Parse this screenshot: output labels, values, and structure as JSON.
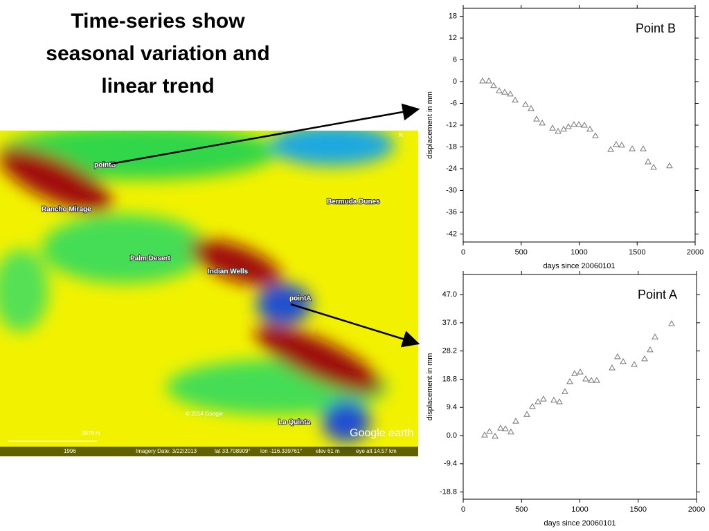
{
  "slide_title": "Time-series show seasonal variation and linear trend",
  "map": {
    "labels": [
      "pointB",
      "Rancho Mirage",
      "Bermuda Dunes",
      "Palm Desert",
      "Indian Wells",
      "pointA",
      "La Quinta",
      "© 2014 Google",
      "Google earth",
      "2079 m",
      "1996",
      "N"
    ],
    "status": [
      "Imagery Date: 3/22/2013",
      "lat  33.708909°",
      "lon -116.339761°",
      "elev   61 m",
      "eye alt  14.57 km"
    ]
  },
  "chart_data": [
    {
      "type": "scatter",
      "title": "Point B",
      "x_label": "days since 20060101",
      "y_label": "displacement in mm",
      "marker": "triangle",
      "color": "#777777",
      "xlim": [
        0,
        2000
      ],
      "xticks": [
        0,
        500,
        1000,
        1500,
        2000
      ],
      "ylim": [
        -44.2,
        20.2
      ],
      "yticks": [
        18,
        12,
        6,
        0,
        -6,
        -12,
        -18,
        -24,
        -30,
        -36,
        -42
      ],
      "x": [
        167,
        221,
        263,
        310,
        358,
        406,
        448,
        537,
        585,
        633,
        681,
        770,
        818,
        866,
        907,
        955,
        997,
        1045,
        1093,
        1140,
        1272,
        1319,
        1367,
        1457,
        1552,
        1594,
        1642,
        1779
      ],
      "values": [
        0.2,
        0.2,
        -1.1,
        -2.5,
        -2.9,
        -3.4,
        -5.1,
        -6.3,
        -7.4,
        -10.3,
        -11.4,
        -12.8,
        -13.7,
        -13.1,
        -12.4,
        -11.8,
        -11.8,
        -12,
        -13.1,
        -14.9,
        -18.7,
        -17.3,
        -17.5,
        -18.5,
        -18.5,
        -22.1,
        -23.6,
        -23.2
      ]
    },
    {
      "type": "scatter",
      "title": "Point A",
      "x_label": "days since 20060101",
      "y_label": "displacement in mm",
      "marker": "triangle",
      "color": "#777777",
      "xlim": [
        0,
        2000
      ],
      "xticks": [
        0,
        500,
        1000,
        1500,
        2000
      ],
      "ylim": [
        -21.2,
        53.7
      ],
      "yticks": [
        {
          "value": 47,
          "label": "47.0"
        },
        37.6,
        28.2,
        18.8,
        9.4,
        {
          "value": 0,
          "label": "0.0"
        },
        -9.4,
        -18.8
      ],
      "x": [
        184,
        226,
        273,
        320,
        362,
        409,
        451,
        546,
        593,
        641,
        688,
        777,
        825,
        872,
        914,
        955,
        1003,
        1050,
        1098,
        1145,
        1276,
        1323,
        1371,
        1466,
        1555,
        1602,
        1644,
        1786
      ],
      "values": [
        0.2,
        1.4,
        -0.2,
        2.5,
        2.3,
        1.2,
        4.8,
        7.1,
        9.7,
        11.3,
        12.2,
        11.8,
        11.3,
        14.7,
        18,
        20.7,
        21.2,
        18.9,
        18.4,
        18.4,
        22.6,
        26.3,
        24.7,
        23.7,
        25.6,
        28.6,
        32.9,
        37.3
      ]
    }
  ]
}
